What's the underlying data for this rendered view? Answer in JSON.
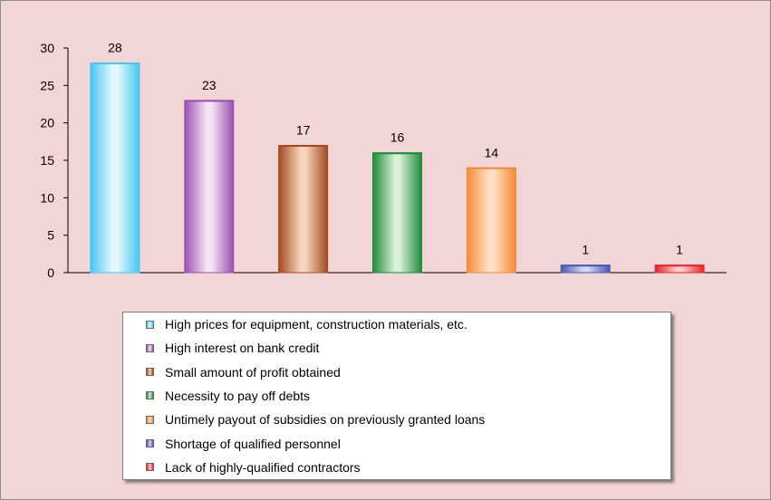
{
  "chart_data": {
    "type": "bar",
    "categories": [
      "High prices for equipment, construction materials, etc.",
      "High interest on bank credit",
      "Small amount of profit obtained",
      "Necessity to pay off debts",
      "Untimely payout of subsidies on previously granted loans",
      "Shortage of qualified personnel",
      "Lack of highly-qualified contractors"
    ],
    "values": [
      28,
      23,
      17,
      16,
      14,
      1,
      1
    ],
    "colors": [
      "#44c8f0",
      "#9b4fb0",
      "#a54a1f",
      "#1e8b3a",
      "#f58a35",
      "#4b58b5",
      "#e3262c"
    ],
    "highlight_colors": [
      "#e4f7fd",
      "#f4e4f4",
      "#f7d5bd",
      "#d8f0d8",
      "#ffe0c4",
      "#d4d8f0",
      "#ffcccc"
    ],
    "yticks": [
      "0",
      "5",
      "10",
      "15",
      "20",
      "25",
      "30"
    ],
    "ylim": [
      0,
      30
    ],
    "data_labels": [
      "28",
      "23",
      "17",
      "16",
      "14",
      "1",
      "1"
    ],
    "legend_position": "bottom",
    "grid": false,
    "title": "",
    "xlabel": "",
    "ylabel": ""
  }
}
